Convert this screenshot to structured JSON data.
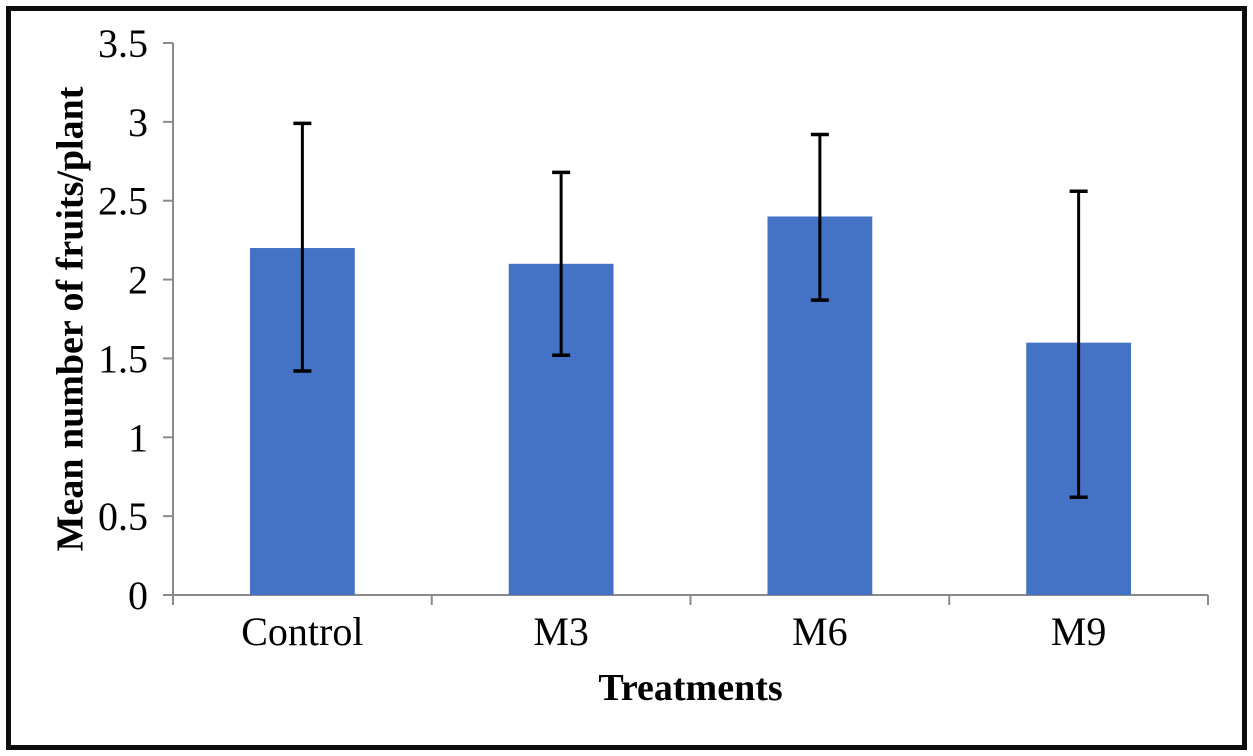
{
  "chart_data": {
    "type": "bar",
    "title": "",
    "xlabel": "Treatments",
    "ylabel": "Mean number of fruits/plant",
    "categories": [
      "Control",
      "M3",
      "M6",
      "M9"
    ],
    "values": [
      2.2,
      2.1,
      2.4,
      1.6
    ],
    "error_bars": {
      "upper": [
        2.99,
        2.68,
        2.92,
        2.56
      ],
      "lower": [
        1.42,
        1.52,
        1.87,
        0.62
      ]
    },
    "ylim": [
      0,
      3.5
    ],
    "yticks": [
      0,
      0.5,
      1,
      1.5,
      2,
      2.5,
      3,
      3.5
    ],
    "ytick_labels": [
      "0",
      "0.5",
      "1",
      "1.5",
      "2",
      "2.5",
      "3",
      "3.5"
    ],
    "grid": false,
    "legend": false,
    "bar_color": "#4472C4",
    "axis_color": "#8a8a8a",
    "error_bar_color": "#000000",
    "text_color": "#000000"
  }
}
